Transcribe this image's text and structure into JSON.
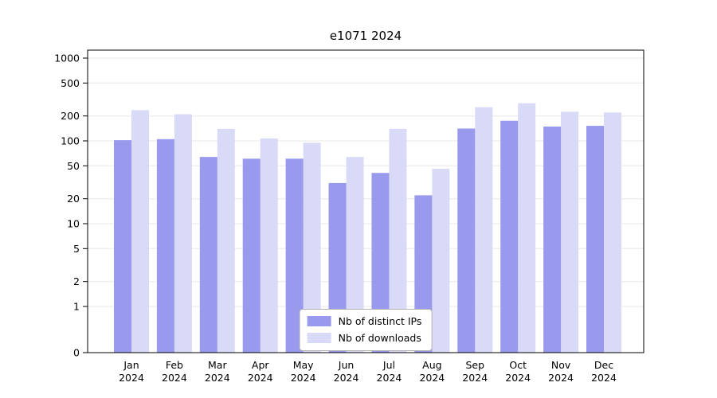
{
  "chart_data": {
    "type": "bar",
    "title": "e1071 2024",
    "yscale": "log",
    "grid": true,
    "legend_position": "bottom-center",
    "ylim": [
      0,
      1250
    ],
    "yticks": [
      0,
      1,
      2,
      5,
      10,
      20,
      50,
      100,
      200,
      500,
      1000
    ],
    "categories": [
      {
        "month": "Jan",
        "year": "2024"
      },
      {
        "month": "Feb",
        "year": "2024"
      },
      {
        "month": "Mar",
        "year": "2024"
      },
      {
        "month": "Apr",
        "year": "2024"
      },
      {
        "month": "May",
        "year": "2024"
      },
      {
        "month": "Jun",
        "year": "2024"
      },
      {
        "month": "Jul",
        "year": "2024"
      },
      {
        "month": "Aug",
        "year": "2024"
      },
      {
        "month": "Sep",
        "year": "2024"
      },
      {
        "month": "Oct",
        "year": "2024"
      },
      {
        "month": "Nov",
        "year": "2024"
      },
      {
        "month": "Dec",
        "year": "2024"
      }
    ],
    "series": [
      {
        "name": "Nb of distinct IPs",
        "color": "#9999ee",
        "values": [
          102,
          105,
          64,
          61,
          61,
          31,
          41,
          22,
          141,
          175,
          149,
          152
        ]
      },
      {
        "name": "Nb of downloads",
        "color": "#d9d9f8",
        "values": [
          235,
          210,
          140,
          107,
          95,
          64,
          140,
          46,
          255,
          285,
          225,
          220
        ]
      }
    ],
    "colors": {
      "grid": "#e8e8e8",
      "axis": "#000000",
      "background": "#ffffff"
    }
  }
}
